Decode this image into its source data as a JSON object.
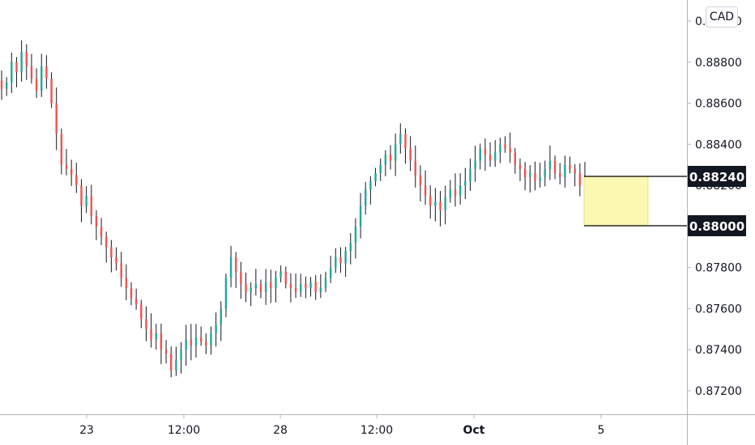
{
  "currency_badge": "CAD",
  "chart_data": {
    "type": "candlestick",
    "y_axis": {
      "ticks": [
        0.872,
        0.874,
        0.876,
        0.878,
        0.88,
        0.882,
        0.884,
        0.886,
        0.888,
        0.89
      ],
      "tick_labels": [
        "0.87200",
        "0.87400",
        "0.87600",
        "0.87800",
        "",
        "0.88200",
        "0.88400",
        "0.88600",
        "0.88800",
        "0.89000"
      ],
      "range": [
        0.8708,
        0.8909
      ]
    },
    "x_axis": {
      "labels": [
        {
          "text": "23",
          "bold": false
        },
        {
          "text": "12:00",
          "bold": false
        },
        {
          "text": "28",
          "bold": false
        },
        {
          "text": "12:00",
          "bold": false
        },
        {
          "text": "Oct",
          "bold": true
        },
        {
          "text": "5",
          "bold": false
        }
      ]
    },
    "price_levels": [
      {
        "value": 0.8824,
        "label": "0.88240"
      },
      {
        "value": 0.88,
        "label": "0.88000"
      }
    ],
    "closes": [
      0.8867,
      0.887,
      0.888,
      0.8875,
      0.8885,
      0.8878,
      0.8872,
      0.8866,
      0.8878,
      0.8872,
      0.886,
      0.8845,
      0.883,
      0.8828,
      0.8825,
      0.882,
      0.881,
      0.8815,
      0.8805,
      0.88,
      0.8795,
      0.879,
      0.8785,
      0.8782,
      0.8775,
      0.877,
      0.8765,
      0.8762,
      0.8755,
      0.875,
      0.8745,
      0.8748,
      0.874,
      0.8738,
      0.873,
      0.8735,
      0.874,
      0.8745,
      0.8742,
      0.8746,
      0.8744,
      0.8742,
      0.8748,
      0.8752,
      0.876,
      0.8775,
      0.8785,
      0.8778,
      0.8772,
      0.8768,
      0.877,
      0.8772,
      0.8768,
      0.8773,
      0.877,
      0.8775,
      0.8778,
      0.8772,
      0.877,
      0.8768,
      0.8772,
      0.877,
      0.8773,
      0.8768,
      0.877,
      0.8775,
      0.878,
      0.8785,
      0.8782,
      0.8788,
      0.8792,
      0.88,
      0.881,
      0.8818,
      0.8822,
      0.8826,
      0.883,
      0.8835,
      0.8832,
      0.884,
      0.8845,
      0.8838,
      0.8832,
      0.8825,
      0.882,
      0.8815,
      0.881,
      0.8812,
      0.8808,
      0.8814,
      0.8818,
      0.8815,
      0.882,
      0.8822,
      0.8828,
      0.8832,
      0.8838,
      0.8835,
      0.8832,
      0.8836,
      0.884,
      0.8838,
      0.8836,
      0.883,
      0.8828,
      0.8824,
      0.8826,
      0.8822,
      0.8824,
      0.8828,
      0.8832,
      0.8826,
      0.8824,
      0.883,
      0.8828,
      0.8826,
      0.882,
      0.8824
    ]
  }
}
